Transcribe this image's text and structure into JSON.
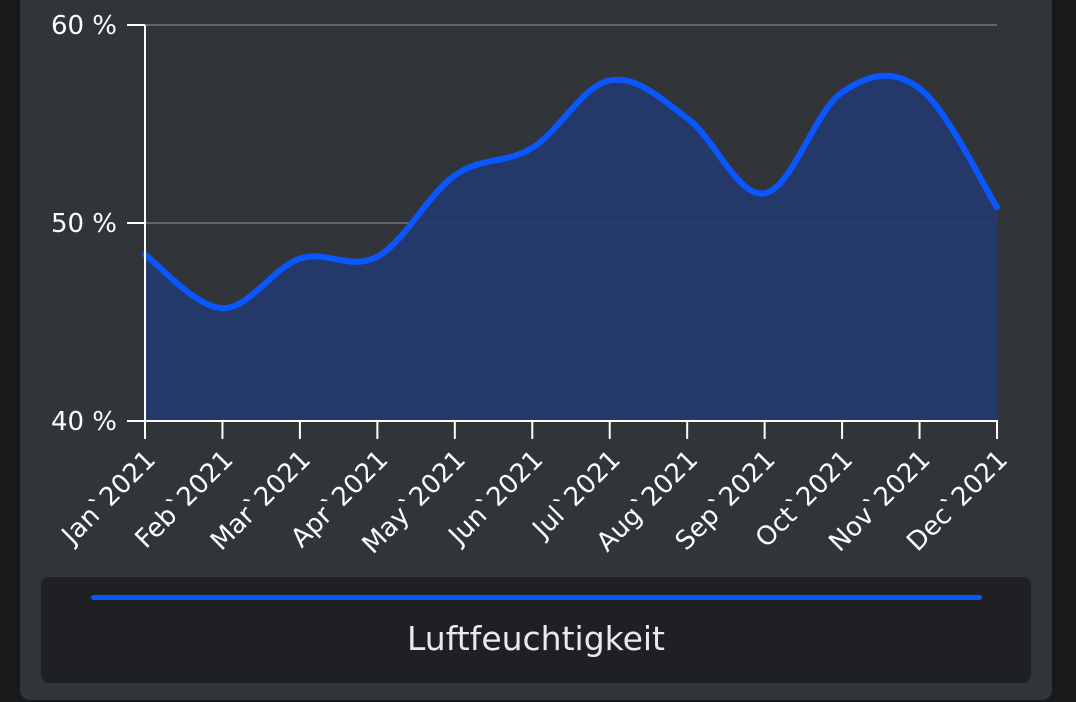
{
  "chart_data": {
    "type": "area",
    "x": [
      "Jan`2021",
      "Feb`2021",
      "Mar`2021",
      "Apr`2021",
      "May`2021",
      "Jun`2021",
      "Jul`2021",
      "Aug`2021",
      "Sep`2021",
      "Oct`2021",
      "Nov`2021",
      "Dec`2021"
    ],
    "series": [
      {
        "name": "Luftfeuchtigkeit",
        "values": [
          48.4,
          45.7,
          48.2,
          48.3,
          52.4,
          53.8,
          57.2,
          55.3,
          51.5,
          56.6,
          56.8,
          50.8
        ]
      }
    ],
    "y_ticks": [
      "40 %",
      "50 %",
      "60 %"
    ],
    "ylim": [
      40,
      60
    ],
    "grid": true,
    "legend_position": "bottom",
    "colors": {
      "line": "#0b57ff",
      "fill": "#243a6b",
      "grid": "#62656b",
      "axis": "#ffffff"
    }
  },
  "legend": {
    "label": "Luftfeuchtigkeit"
  }
}
